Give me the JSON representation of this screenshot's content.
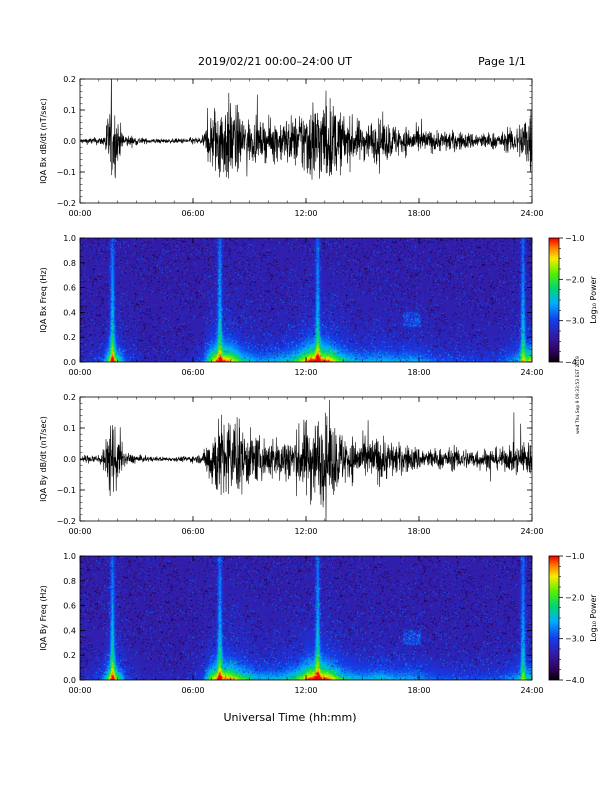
{
  "header": {
    "title": "2019/02/21  00:00–24:00 UT",
    "page": "Page 1/1"
  },
  "footer": {
    "xlabel": "Universal Time (hh:mm)",
    "side_note": "wed Thu Sep 9 09:33:53 EST 2019"
  },
  "chart_data": [
    {
      "type": "line",
      "name": "Bx time series",
      "ylabel": "IQA Bx dB/dt (nT/sec)",
      "xlim": [
        0,
        24
      ],
      "ylim": [
        -0.2,
        0.2
      ],
      "xticks": [
        0,
        6,
        12,
        18,
        24
      ],
      "xtick_labels": [
        "00:00",
        "06:00",
        "12:00",
        "18:00",
        "24:00"
      ],
      "yticks": [
        -0.2,
        -0.1,
        0.0,
        0.1,
        0.2
      ],
      "ytick_labels": [
        "−0.2",
        "−0.1",
        "0.0",
        "0.1",
        "0.2"
      ],
      "envelope": {
        "x": [
          0,
          0.5,
          1.2,
          1.7,
          2.0,
          2.4,
          3.5,
          5.0,
          6.5,
          7.0,
          7.4,
          8.0,
          8.6,
          9.5,
          10.5,
          11.5,
          12.2,
          12.7,
          13.2,
          14.0,
          15.0,
          16.0,
          17.0,
          17.8,
          18.5,
          19.5,
          20.5,
          21.5,
          22.5,
          23.3,
          24.0
        ],
        "amp": [
          0.012,
          0.015,
          0.02,
          0.2,
          0.1,
          0.03,
          0.012,
          0.01,
          0.02,
          0.15,
          0.2,
          0.2,
          0.12,
          0.08,
          0.1,
          0.12,
          0.2,
          0.2,
          0.2,
          0.12,
          0.09,
          0.1,
          0.07,
          0.06,
          0.05,
          0.05,
          0.04,
          0.04,
          0.04,
          0.08,
          0.2
        ]
      }
    },
    {
      "type": "heatmap",
      "name": "Bx spectrogram",
      "ylabel": "IQA Bx Freq (Hz)",
      "xlim": [
        0,
        24
      ],
      "ylim": [
        0.0,
        1.0
      ],
      "xticks": [
        0,
        6,
        12,
        18,
        24
      ],
      "xtick_labels": [
        "00:00",
        "06:00",
        "12:00",
        "18:00",
        "24:00"
      ],
      "yticks": [
        0.0,
        0.2,
        0.4,
        0.6,
        0.8,
        1.0
      ],
      "ytick_labels": [
        "0.0",
        "0.2",
        "0.4",
        "0.6",
        "0.8",
        "1.0"
      ],
      "colorbar": {
        "label": "Log₁₀ Power",
        "range": [
          -4.0,
          -1.0
        ],
        "ticks": [
          -4.0,
          -3.0,
          -2.0,
          -1.0
        ],
        "tick_labels": [
          "−4.0",
          "−3.0",
          "−2.0",
          "−1.0"
        ]
      }
    },
    {
      "type": "line",
      "name": "By time series",
      "ylabel": "IQA By dB/dt (nT/sec)",
      "xlim": [
        0,
        24
      ],
      "ylim": [
        -0.2,
        0.2
      ],
      "xticks": [
        0,
        6,
        12,
        18,
        24
      ],
      "xtick_labels": [
        "00:00",
        "06:00",
        "12:00",
        "18:00",
        "24:00"
      ],
      "yticks": [
        -0.2,
        -0.1,
        0.0,
        0.1,
        0.2
      ],
      "ytick_labels": [
        "−0.2",
        "−0.1",
        "0.0",
        "0.1",
        "0.2"
      ],
      "envelope": {
        "x": [
          0,
          0.5,
          1.2,
          1.7,
          2.0,
          2.4,
          3.5,
          5.0,
          6.5,
          7.0,
          7.4,
          8.0,
          8.6,
          9.5,
          10.5,
          11.5,
          12.2,
          12.7,
          13.2,
          14.0,
          15.0,
          16.0,
          17.0,
          17.8,
          18.5,
          19.5,
          20.5,
          21.5,
          22.5,
          23.3,
          24.0
        ],
        "amp": [
          0.015,
          0.02,
          0.03,
          0.2,
          0.12,
          0.03,
          0.012,
          0.01,
          0.02,
          0.15,
          0.2,
          0.2,
          0.15,
          0.1,
          0.1,
          0.13,
          0.2,
          0.2,
          0.2,
          0.12,
          0.09,
          0.11,
          0.07,
          0.06,
          0.05,
          0.05,
          0.05,
          0.05,
          0.05,
          0.07,
          0.1
        ]
      }
    },
    {
      "type": "heatmap",
      "name": "By spectrogram",
      "ylabel": "IQA By Freq (Hz)",
      "xlim": [
        0,
        24
      ],
      "ylim": [
        0.0,
        1.0
      ],
      "xticks": [
        0,
        6,
        12,
        18,
        24
      ],
      "xtick_labels": [
        "00:00",
        "06:00",
        "12:00",
        "18:00",
        "24:00"
      ],
      "yticks": [
        0.0,
        0.2,
        0.4,
        0.6,
        0.8,
        1.0
      ],
      "ytick_labels": [
        "0.0",
        "0.2",
        "0.4",
        "0.6",
        "0.8",
        "1.0"
      ],
      "colorbar": {
        "label": "Log₁₀ Power",
        "range": [
          -4.0,
          -1.0
        ],
        "ticks": [
          -4.0,
          -3.0,
          -2.0,
          -1.0
        ],
        "tick_labels": [
          "−4.0",
          "−3.0",
          "−2.0",
          "−1.0"
        ]
      }
    }
  ]
}
